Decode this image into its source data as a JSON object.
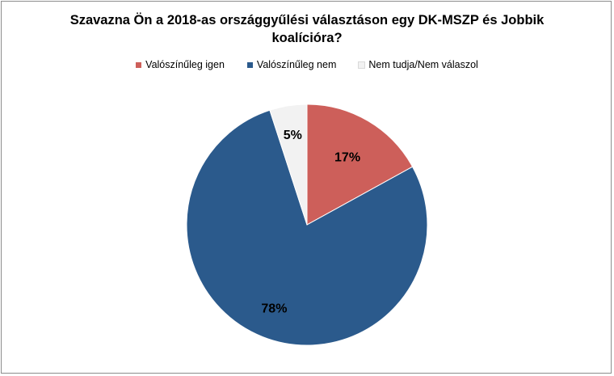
{
  "chart_data": {
    "type": "pie",
    "title": "Szavazna Ön a 2018-as országgyűlési választáson egy DK-MSZP és Jobbik koalícióra?",
    "title_lines": [
      "Szavazna Ön a 2018-as országgyűlési választáson egy DK-MSZP és Jobbik",
      "koalícióra?"
    ],
    "legend_position": "top",
    "slices": [
      {
        "label": "Valószínűleg igen",
        "value": 17,
        "display": "17%",
        "color": "#cd5f5a"
      },
      {
        "label": "Valószínűleg nem",
        "value": 78,
        "display": "78%",
        "color": "#2b5a8c"
      },
      {
        "label": "Nem tudja/Nem válaszol",
        "value": 5,
        "display": "5%",
        "color": "#f2f2f2"
      }
    ]
  }
}
